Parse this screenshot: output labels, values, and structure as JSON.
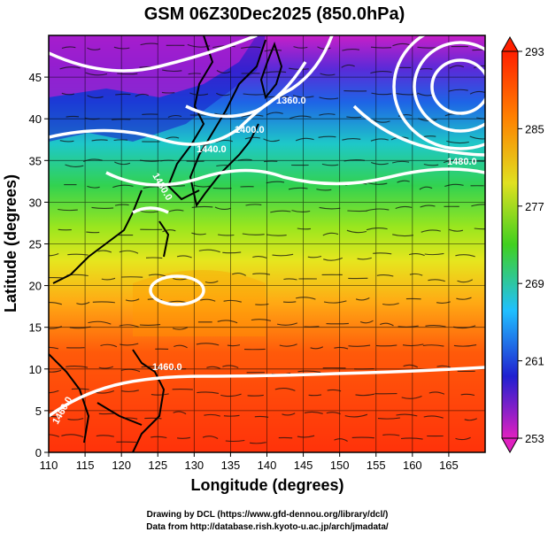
{
  "title": "GSM 06Z30Dec2025 (850.0hPa)",
  "x_axis": {
    "label": "Longitude (degrees)",
    "ticks": [
      "110",
      "115",
      "120",
      "125",
      "130",
      "135",
      "140",
      "145",
      "150",
      "155",
      "160",
      "165"
    ]
  },
  "y_axis": {
    "label": "Latitude  (degrees)",
    "ticks": [
      "0",
      "5",
      "10",
      "15",
      "20",
      "25",
      "30",
      "35",
      "40",
      "45"
    ]
  },
  "colorbar": {
    "ticks": [
      "253",
      "261",
      "269",
      "277",
      "285",
      "293"
    ],
    "palette": [
      "#e020c0",
      "#2020d0",
      "#20c0ff",
      "#40d020",
      "#e0e020",
      "#ff8000",
      "#ff2000"
    ]
  },
  "contours": {
    "labels": [
      "1360.0",
      "1400.0",
      "1440.0",
      "1480.0",
      "1480.0",
      "1460.0",
      "1460.0"
    ]
  },
  "footer": {
    "line1": "Drawing by DCL (https://www.gfd-dennou.org/library/dcl/)",
    "line2": "Data from http://database.rish.kyoto-u.ac.jp/arch/jmadata/"
  }
}
